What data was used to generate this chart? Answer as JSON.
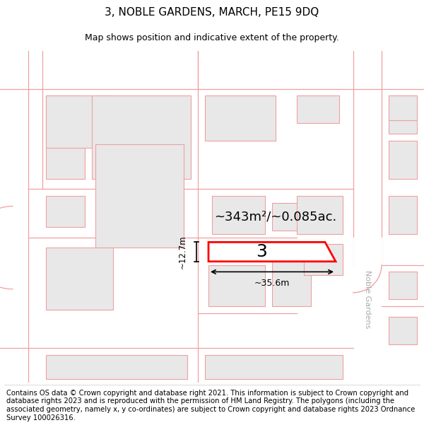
{
  "title": "3, NOBLE GARDENS, MARCH, PE15 9DQ",
  "subtitle": "Map shows position and indicative extent of the property.",
  "footer": "Contains OS data © Crown copyright and database right 2021. This information is subject to Crown copyright and database rights 2023 and is reproduced with the permission of HM Land Registry. The polygons (including the associated geometry, namely x, y co-ordinates) are subject to Crown copyright and database rights 2023 Ordnance Survey 100026316.",
  "background_color": "#ffffff",
  "map_background": "#ffffff",
  "title_fontsize": 11,
  "subtitle_fontsize": 9,
  "footer_fontsize": 7.2,
  "area_label": "~343m²/~0.085ac.",
  "width_label": "~35.6m",
  "height_label": "~12.7m",
  "property_number": "3",
  "road_label": "Noble Gardens",
  "road_color": "#c8c8c8",
  "building_fc": "#e8e8e8",
  "building_ec": "#f0a0a0",
  "road_line_color": "#f0a0a0",
  "prop_color": "#ff0000"
}
